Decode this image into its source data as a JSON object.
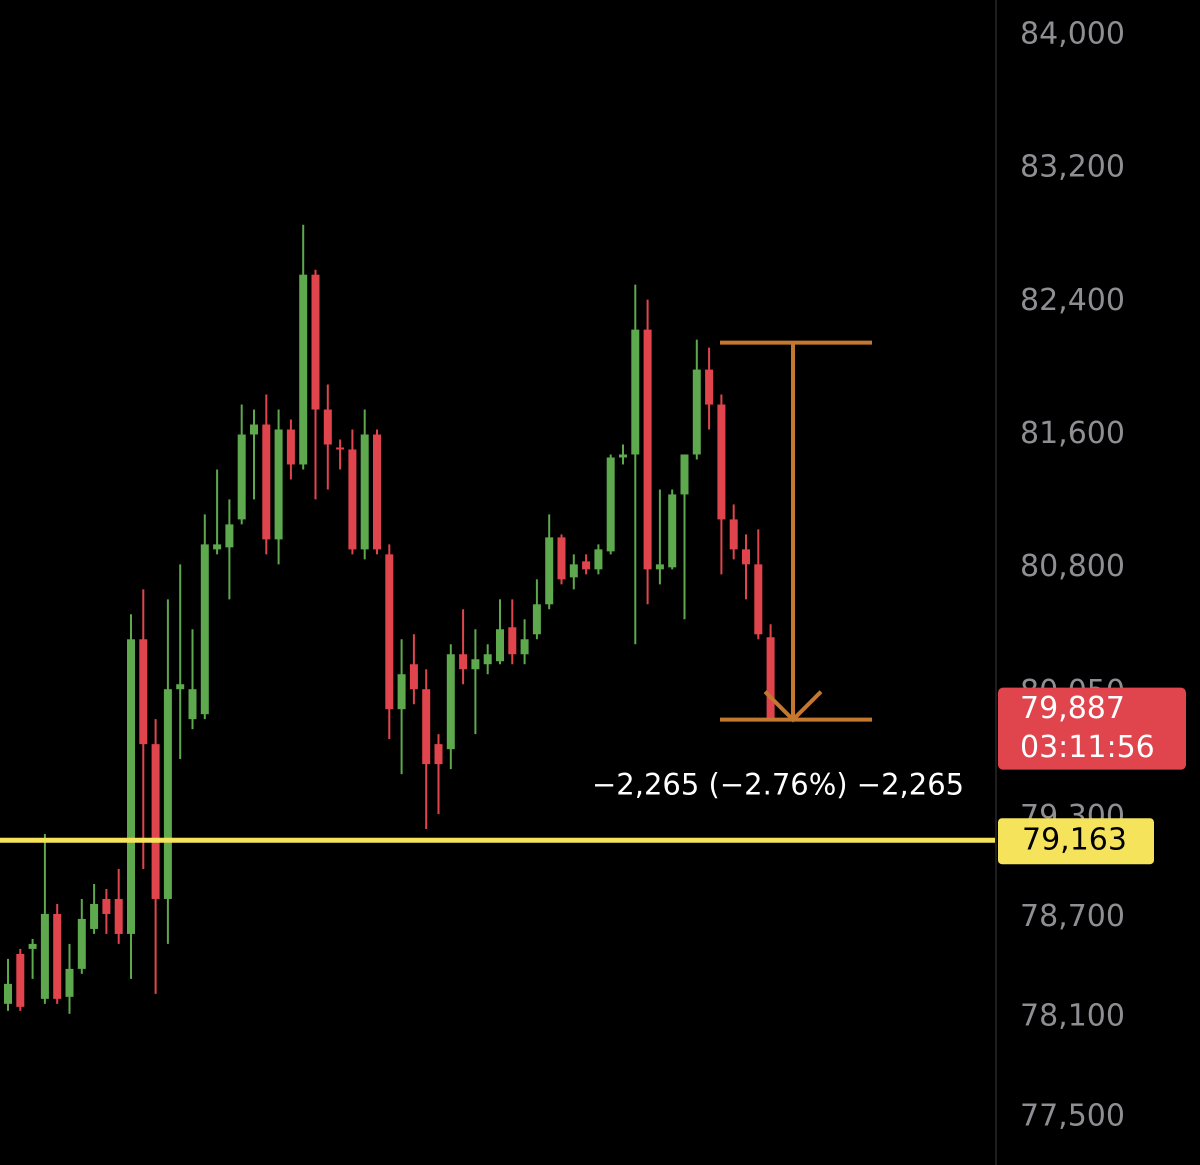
{
  "chart_data": {
    "type": "candlestick",
    "up_color": "#5ea84e",
    "down_color": "#e0454d",
    "ylim": [
      77212,
      84210
    ],
    "yticks": [
      {
        "value": 84000,
        "label": "84,000"
      },
      {
        "value": 83200,
        "label": "83,200"
      },
      {
        "value": 82400,
        "label": "82,400"
      },
      {
        "value": 81600,
        "label": "81,600"
      },
      {
        "value": 80800,
        "label": "80,800"
      },
      {
        "value": 80050,
        "label": "80,050"
      },
      {
        "value": 79300,
        "label": "79,300"
      },
      {
        "value": 78700,
        "label": "78,700"
      },
      {
        "value": 78100,
        "label": "78,100"
      },
      {
        "value": 77500,
        "label": "77,500"
      }
    ],
    "open": [
      78180,
      78480,
      78510,
      78210,
      78720,
      78222,
      78390,
      78630,
      78810,
      78810,
      78600,
      80370,
      79740,
      78810,
      80070,
      79890,
      79920,
      80910,
      80922,
      81090,
      81600,
      81660,
      80970,
      81630,
      81420,
      82560,
      81750,
      81522,
      81510,
      80910,
      81600,
      80880,
      79950,
      80220,
      80070,
      79740,
      79710,
      80280,
      80190,
      80220,
      80238,
      80442,
      80280,
      80400,
      80580,
      80982,
      80742,
      80838,
      80790,
      80898,
      81462,
      81480,
      82230,
      80790,
      80802,
      81240,
      81480,
      81990,
      81780,
      81090,
      80910,
      80820,
      80382
    ],
    "high": [
      78450,
      78510,
      78570,
      79200,
      78780,
      78540,
      78810,
      78900,
      78870,
      78990,
      80520,
      80670,
      79890,
      80610,
      80820,
      80430,
      81120,
      81390,
      81210,
      81780,
      81750,
      81840,
      81750,
      81690,
      82860,
      82590,
      81900,
      81570,
      81630,
      81750,
      81630,
      80940,
      80370,
      80400,
      80190,
      79800,
      80340,
      80550,
      80430,
      80340,
      80610,
      80610,
      80490,
      80730,
      81120,
      81000,
      80880,
      80880,
      80940,
      81480,
      81540,
      82500,
      82410,
      81270,
      81270,
      81480,
      82170,
      82122,
      81840,
      81180,
      81000,
      81030,
      80460
    ],
    "low": [
      78138,
      78138,
      78330,
      78180,
      78180,
      78120,
      78360,
      78600,
      78600,
      78540,
      78330,
      78990,
      78240,
      78540,
      79650,
      79830,
      79890,
      80880,
      80610,
      81060,
      81210,
      80880,
      80820,
      81330,
      81390,
      81210,
      81270,
      81390,
      80880,
      80850,
      80880,
      79770,
      79560,
      79980,
      79230,
      79320,
      79590,
      80100,
      79800,
      80160,
      80220,
      80220,
      80220,
      80370,
      80550,
      80700,
      80670,
      80760,
      80760,
      80880,
      81420,
      80340,
      80580,
      80700,
      80790,
      80490,
      81450,
      81630,
      80760,
      80850,
      80610,
      80370,
      79880
    ],
    "close": [
      78300,
      78162,
      78540,
      78720,
      78210,
      78390,
      78690,
      78780,
      78720,
      78600,
      80370,
      79740,
      78810,
      80070,
      80100,
      80070,
      80940,
      80940,
      81060,
      81600,
      81660,
      80970,
      81630,
      81420,
      82560,
      81750,
      81540,
      81510,
      80910,
      81600,
      80910,
      79950,
      80160,
      80070,
      79620,
      79620,
      80280,
      80190,
      80250,
      80280,
      80430,
      80280,
      80370,
      80580,
      80982,
      80730,
      80820,
      80790,
      80910,
      81462,
      81480,
      82230,
      80790,
      80820,
      81240,
      81480,
      81990,
      81780,
      81090,
      80910,
      80820,
      80400,
      79887
    ],
    "current_price": {
      "value": 79887,
      "label": "79,887",
      "countdown": "03:11:56",
      "color": "#e0454d"
    },
    "level": {
      "value": 79163,
      "label": "79,163",
      "color": "#f6e35c"
    },
    "measure": {
      "start": 82152,
      "end": 79887,
      "label": "−2,265 (−2.76%) −2,265",
      "color": "#c4782f"
    }
  }
}
